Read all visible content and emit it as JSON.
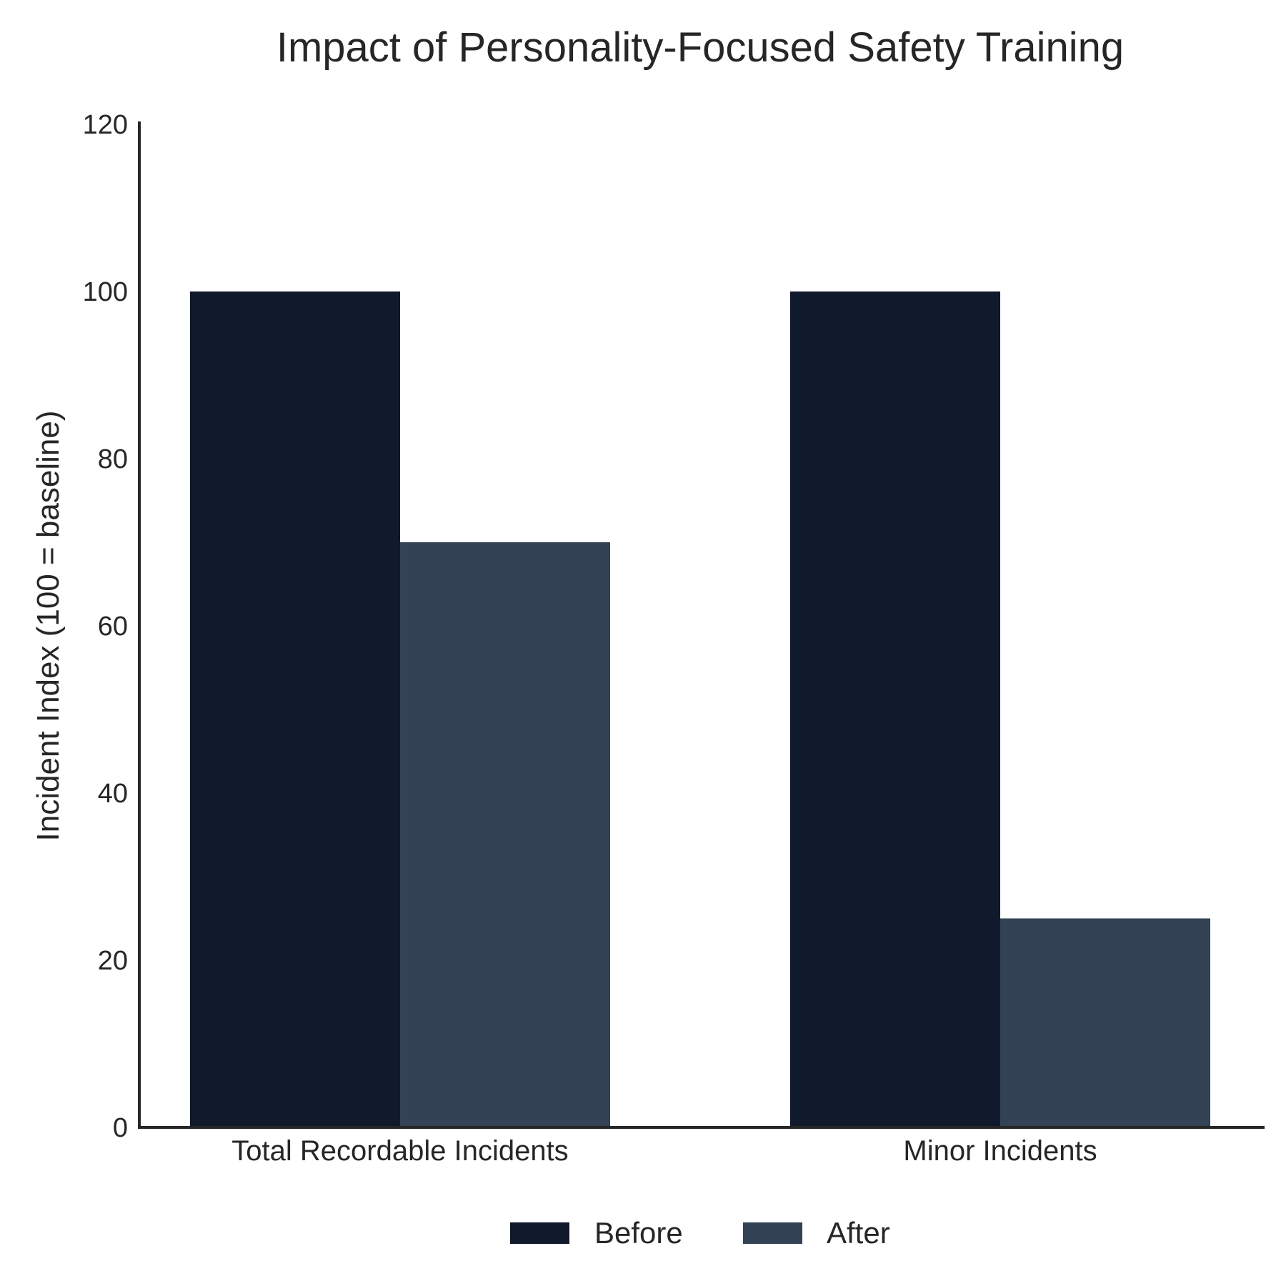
{
  "chart_data": {
    "type": "bar",
    "title": "Impact of Personality-Focused Safety Training",
    "xlabel": "",
    "ylabel": "Incident Index (100 = baseline)",
    "categories": [
      "Total Recordable Incidents",
      "Minor Incidents"
    ],
    "series": [
      {
        "name": "Before",
        "values": [
          100,
          100
        ],
        "color": "#111a2c"
      },
      {
        "name": "After",
        "values": [
          70,
          25
        ],
        "color": "#334254"
      }
    ],
    "ylim": [
      0,
      120
    ],
    "yticks": [
      0,
      20,
      40,
      60,
      80,
      100,
      120
    ],
    "grid": false,
    "legend_position": "bottom-center"
  }
}
